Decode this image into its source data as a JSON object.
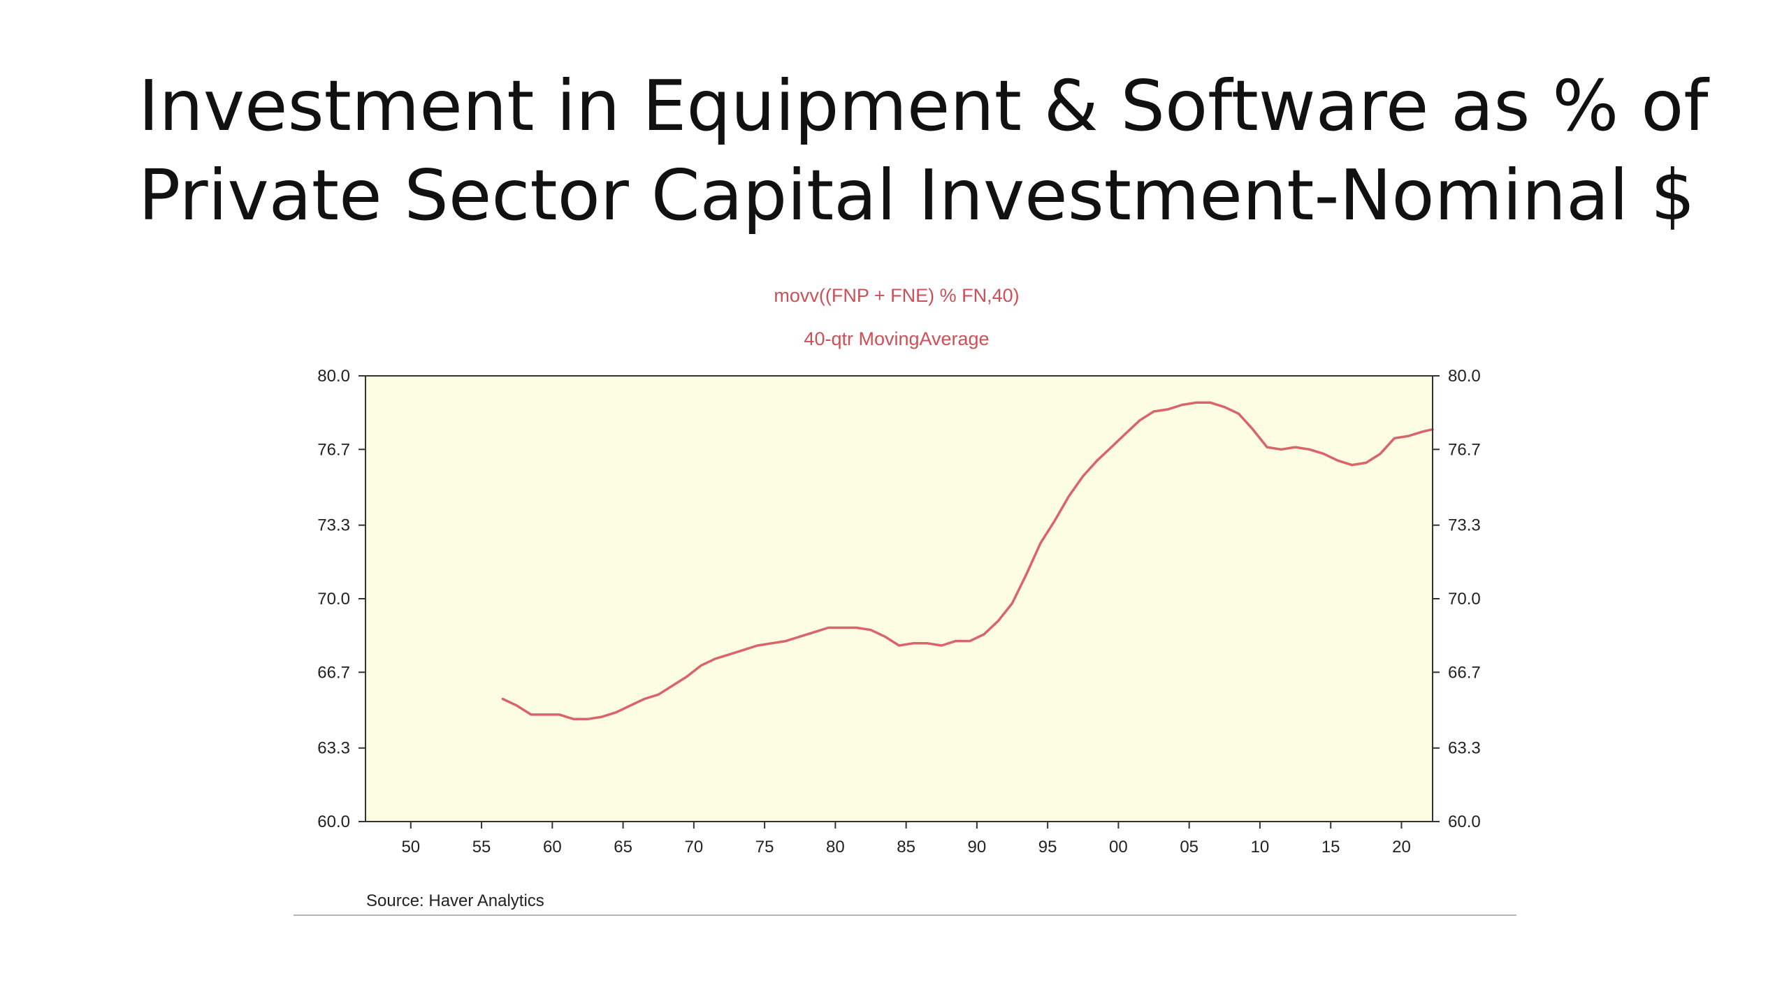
{
  "slide": {
    "title_line1": "Investment in Equipment & Software as % of",
    "title_line2": "Private Sector Capital Investment-Nominal $"
  },
  "chart_data": {
    "type": "line",
    "title": "movv((FNP + FNE) % FN,40)",
    "subtitle": "40-qtr MovingAverage",
    "source": "Source:  Haver Analytics",
    "xlim": [
      1946.8,
      2022.2
    ],
    "ylim": [
      60.0,
      80.0
    ],
    "x_ticks": [
      1950,
      1955,
      1960,
      1965,
      1970,
      1975,
      1980,
      1985,
      1990,
      1995,
      2000,
      2005,
      2010,
      2015,
      2020
    ],
    "x_tick_labels": [
      "50",
      "55",
      "60",
      "65",
      "70",
      "75",
      "80",
      "85",
      "90",
      "95",
      "00",
      "05",
      "10",
      "15",
      "20"
    ],
    "y_ticks": [
      60.0,
      63.3,
      66.7,
      70.0,
      73.3,
      76.7,
      80.0
    ],
    "y_tick_labels": [
      "60.0",
      "63.3",
      "66.7",
      "70.0",
      "73.3",
      "76.7",
      "80.0"
    ],
    "right_axis": true,
    "grid": false,
    "colors": {
      "line": "#d9646a",
      "title": "#cf4f57",
      "plot_background": "#fdfde3",
      "frame": "#333333"
    },
    "series": [
      {
        "x": [
          1956.5,
          1957.5,
          1958.5,
          1959.5,
          1960.5,
          1961.5,
          1962.5,
          1963.5,
          1964.5,
          1965.5,
          1966.5,
          1967.5,
          1968.5,
          1969.5,
          1970.5,
          1971.5,
          1972.5,
          1973.5,
          1974.5,
          1975.5,
          1976.5,
          1977.5,
          1978.5,
          1979.5,
          1980.5,
          1981.5,
          1982.5,
          1983.5,
          1984.5,
          1985.5,
          1986.5,
          1987.5,
          1988.5,
          1989.5,
          1990.5,
          1991.5,
          1992.5,
          1993.5,
          1994.5,
          1995.5,
          1996.5,
          1997.5,
          1998.5,
          1999.5,
          2000.5,
          2001.5,
          2002.5,
          2003.5,
          2004.5,
          2005.5,
          2006.5,
          2007.5,
          2008.5,
          2009.5,
          2010.5,
          2011.5,
          2012.5,
          2013.5,
          2014.5,
          2015.5,
          2016.5,
          2017.5,
          2018.5,
          2019.5,
          2020.5,
          2021.5,
          2022.2
        ],
        "values": [
          65.5,
          65.2,
          64.8,
          64.8,
          64.8,
          64.6,
          64.6,
          64.7,
          64.9,
          65.2,
          65.5,
          65.7,
          66.1,
          66.5,
          67.0,
          67.3,
          67.5,
          67.7,
          67.9,
          68.0,
          68.1,
          68.3,
          68.5,
          68.7,
          68.7,
          68.7,
          68.6,
          68.3,
          67.9,
          68.0,
          68.0,
          67.9,
          68.1,
          68.1,
          68.4,
          69.0,
          69.8,
          71.1,
          72.5,
          73.5,
          74.6,
          75.5,
          76.2,
          76.8,
          77.4,
          78.0,
          78.4,
          78.5,
          78.7,
          78.8,
          78.8,
          78.6,
          78.3,
          77.6,
          76.8,
          76.7,
          76.8,
          76.7,
          76.5,
          76.2,
          76.0,
          76.1,
          76.5,
          77.2,
          77.3,
          77.5,
          77.6
        ]
      }
    ]
  }
}
